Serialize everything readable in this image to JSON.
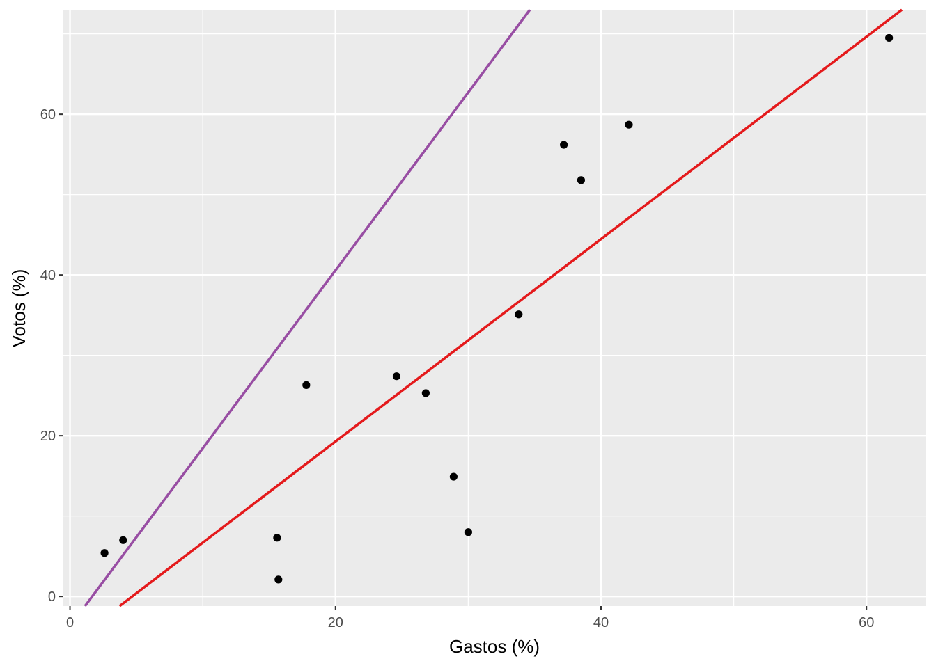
{
  "chart_data": {
    "type": "scatter",
    "title": "",
    "xlabel": "Gastos (%)",
    "ylabel": "Votos (%)",
    "xlim": [
      -0.5,
      64.5
    ],
    "ylim": [
      -1.2,
      73
    ],
    "x_ticks": [
      0,
      20,
      40,
      60
    ],
    "y_ticks": [
      0,
      20,
      40,
      60
    ],
    "x_tick_labels": [
      "0",
      "20",
      "40",
      "60"
    ],
    "y_tick_labels": [
      "0",
      "20",
      "40",
      "60"
    ],
    "grid": true,
    "background": "#ebebeb",
    "points": [
      {
        "x": 2.6,
        "y": 5.4
      },
      {
        "x": 4.0,
        "y": 7.0
      },
      {
        "x": 15.6,
        "y": 7.3
      },
      {
        "x": 15.7,
        "y": 2.1
      },
      {
        "x": 17.8,
        "y": 26.3
      },
      {
        "x": 24.6,
        "y": 27.4
      },
      {
        "x": 26.8,
        "y": 25.3
      },
      {
        "x": 28.9,
        "y": 14.9
      },
      {
        "x": 30.0,
        "y": 8.0
      },
      {
        "x": 33.8,
        "y": 35.1
      },
      {
        "x": 37.2,
        "y": 56.2
      },
      {
        "x": 38.5,
        "y": 51.8
      },
      {
        "x": 42.1,
        "y": 58.7
      },
      {
        "x": 61.7,
        "y": 69.5
      }
    ],
    "point_color": "#000000",
    "lines": [
      {
        "slope": 2.214,
        "intercept": -3.7,
        "color": "#984ea3"
      },
      {
        "slope": 1.259,
        "intercept": -5.9,
        "color": "#e41a1c"
      }
    ]
  }
}
